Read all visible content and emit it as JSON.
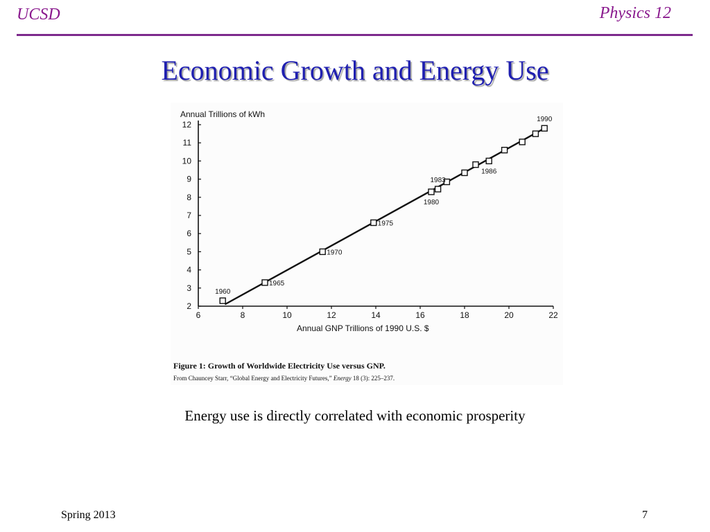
{
  "header": {
    "left": "UCSD",
    "right": "Physics 12"
  },
  "slide_title": "Economic Growth and Energy Use",
  "caption": "Energy use is directly correlated with economic prosperity",
  "footer": {
    "left": "Spring 2013",
    "right": "7"
  },
  "colors": {
    "header_text": "#8a1a8e",
    "rule": "#7d2a8c",
    "title": "#1f1fb0"
  },
  "figure": {
    "caption_title": "Figure 1: Growth of Worldwide Electricity Use versus GNP.",
    "caption_source_prefix": "From Chauncey Starr, “Global Energy and Electricity Futures,”",
    "caption_source_journal": "Energy",
    "caption_source_suffix": "18 (3): 225–237."
  },
  "chart_data": {
    "type": "scatter",
    "title": "",
    "xlabel": "Annual GNP Trillions of 1990 U.S. $",
    "ylabel": "Annual Trillions of kWh",
    "xlim": [
      6,
      22
    ],
    "ylim": [
      2,
      12
    ],
    "xticks": [
      6,
      8,
      10,
      12,
      14,
      16,
      18,
      20,
      22
    ],
    "yticks": [
      2,
      3,
      4,
      5,
      6,
      7,
      8,
      9,
      10,
      11,
      12
    ],
    "grid": false,
    "points": [
      {
        "x": 7.1,
        "y": 2.3
      },
      {
        "x": 9.0,
        "y": 3.3
      },
      {
        "x": 11.6,
        "y": 5.0
      },
      {
        "x": 13.9,
        "y": 6.6
      },
      {
        "x": 16.5,
        "y": 8.3
      },
      {
        "x": 16.8,
        "y": 8.45
      },
      {
        "x": 17.2,
        "y": 8.85
      },
      {
        "x": 18.0,
        "y": 9.35
      },
      {
        "x": 18.5,
        "y": 9.8
      },
      {
        "x": 19.1,
        "y": 10.0
      },
      {
        "x": 19.8,
        "y": 10.6
      },
      {
        "x": 20.6,
        "y": 11.05
      },
      {
        "x": 21.2,
        "y": 11.5
      },
      {
        "x": 21.6,
        "y": 11.8
      }
    ],
    "trend_line": {
      "x": [
        7.2,
        21.6
      ],
      "y": [
        2.1,
        11.8
      ]
    },
    "point_labels": [
      {
        "text": "1960",
        "x": 7.1,
        "y": 2.3,
        "pos": "above"
      },
      {
        "text": "1965",
        "x": 9.0,
        "y": 3.3,
        "pos": "right"
      },
      {
        "text": "1970",
        "x": 11.6,
        "y": 5.0,
        "pos": "right"
      },
      {
        "text": "1975",
        "x": 13.9,
        "y": 6.6,
        "pos": "right"
      },
      {
        "text": "1980",
        "x": 16.5,
        "y": 8.3,
        "pos": "below"
      },
      {
        "text": "1983",
        "x": 16.8,
        "y": 8.45,
        "pos": "above"
      },
      {
        "text": "1986",
        "x": 19.1,
        "y": 10.0,
        "pos": "below"
      },
      {
        "text": "1990",
        "x": 21.6,
        "y": 11.8,
        "pos": "above"
      }
    ]
  }
}
